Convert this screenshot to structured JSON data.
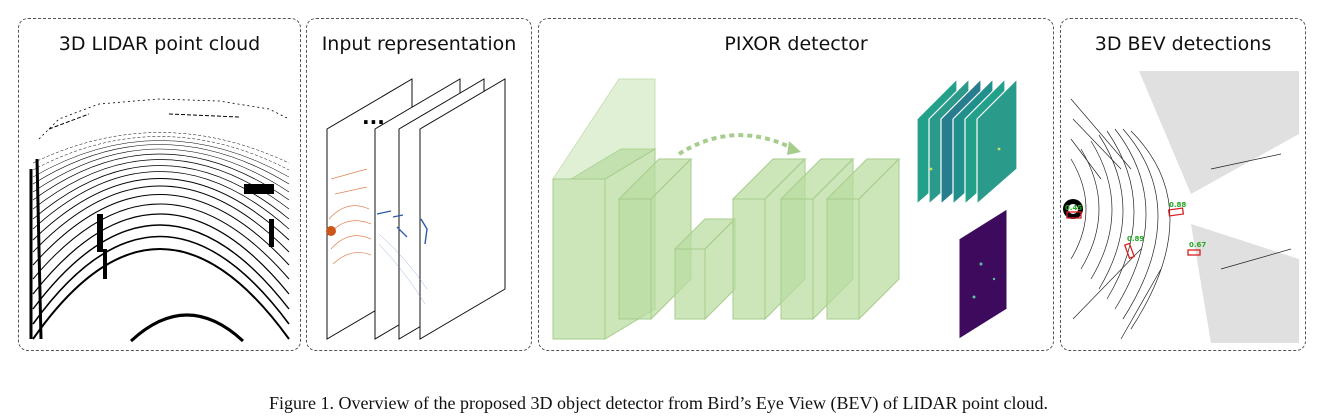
{
  "panels": {
    "lidar": {
      "title": "3D LIDAR point cloud"
    },
    "input": {
      "title": "Input representation",
      "ellipsis": "..."
    },
    "pixor": {
      "title": "PIXOR detector"
    },
    "bev": {
      "title": "3D BEV detections",
      "scores": [
        "0.45",
        "0.88",
        "0.89",
        "0.67"
      ]
    }
  },
  "colors": {
    "block_green": "#b8dca0",
    "teal_map": "#22a08a",
    "purple_map": "#3d0a5e",
    "box_red": "#d62020",
    "score_green": "#22aa22"
  },
  "caption": "Figure 1. Overview of the proposed 3D object detector from Bird’s Eye View (BEV) of LIDAR point cloud."
}
